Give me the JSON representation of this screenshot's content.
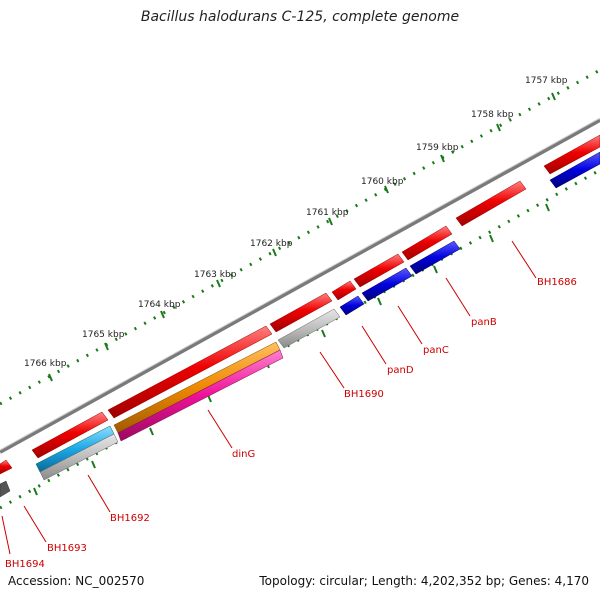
{
  "title": "Bacillus halodurans C-125, complete genome",
  "footer": {
    "accession": "Accession: NC_002570",
    "summary": "Topology: circular; Length: 4,202,352 bp; Genes: 4,170"
  },
  "colors": {
    "backbone": "#7a7a7a",
    "gene_red": "#ee0000",
    "gene_blue": "#0000dd",
    "gene_orange": "#ee8800",
    "gene_cyan": "#1aa8e8",
    "gene_magenta": "#ee1199",
    "gene_gray": "#b8b8b8",
    "tick": "#1a7a1a",
    "gene_label": "#cc0000"
  },
  "kbp_ticks": [
    "1757 kbp",
    "1758 kbp",
    "1759 kbp",
    "1760 kbp",
    "1761 kbp",
    "1762 kbp",
    "1763 kbp",
    "1764 kbp",
    "1765 kbp",
    "1766 kbp"
  ],
  "gene_labels": [
    "BH1686",
    "panB",
    "panC",
    "panD",
    "BH1690",
    "dinG",
    "BH1692",
    "BH1693",
    "BH1694"
  ]
}
